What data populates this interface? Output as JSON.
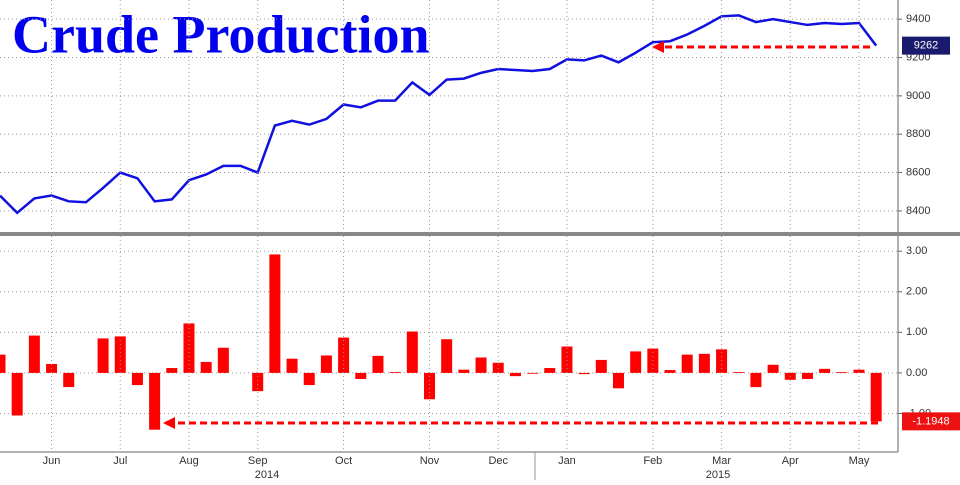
{
  "chart_data": [
    {
      "type": "line",
      "title": "Crude Production",
      "series": [
        {
          "color": "#1010e0",
          "values": [
            8480,
            8390,
            8465,
            8480,
            8450,
            8445,
            8520,
            8600,
            8570,
            8450,
            8460,
            8560,
            8590,
            8635,
            8635,
            8600,
            8845,
            8870,
            8850,
            8880,
            8955,
            8940,
            8975,
            8975,
            9070,
            9005,
            9085,
            9090,
            9120,
            9140,
            9135,
            9130,
            9140,
            9190,
            9185,
            9210,
            9175,
            9225,
            9280,
            9285,
            9320,
            9365,
            9415,
            9420,
            9385,
            9400,
            9385,
            9370,
            9380,
            9375,
            9380,
            9262
          ]
        }
      ],
      "ylim": [
        8290,
        9500
      ],
      "yticks": [
        8400,
        8600,
        8800,
        9000,
        9200,
        9400
      ],
      "grid": true
    },
    {
      "type": "bar",
      "categories": [
        null,
        null,
        null,
        "Jun",
        null,
        null,
        null,
        "Jul",
        null,
        null,
        null,
        "Aug",
        null,
        null,
        null,
        "Sep",
        null,
        null,
        null,
        null,
        "Oct",
        null,
        null,
        null,
        null,
        "Nov",
        null,
        null,
        null,
        "Dec",
        null,
        null,
        null,
        "Jan",
        null,
        null,
        null,
        null,
        "Feb",
        null,
        null,
        null,
        "Mar",
        null,
        null,
        null,
        "Apr",
        null,
        null,
        null,
        "May",
        null
      ],
      "years": [
        "2014",
        "2015"
      ],
      "series": [
        {
          "color": "#ff0000",
          "values": [
            0.45,
            -1.05,
            0.92,
            0.22,
            -0.35,
            0,
            0.85,
            0.9,
            -0.3,
            -1.4,
            0.12,
            1.22,
            0.27,
            0.62,
            0,
            -0.45,
            2.92,
            0.35,
            -0.3,
            0.43,
            0.87,
            -0.15,
            0.42,
            0.02,
            1.02,
            -0.65,
            0.83,
            0.08,
            0.38,
            0.25,
            -0.08,
            -0.02,
            0.12,
            0.65,
            -0.03,
            0.32,
            -0.38,
            0.53,
            0.6,
            0.07,
            0.45,
            0.47,
            0.58,
            0.02,
            -0.35,
            0.2,
            -0.17,
            -0.15,
            0.1,
            0.02,
            0.08,
            -1.1948
          ]
        }
      ],
      "ylim": [
        -1.95,
        3.35
      ],
      "yticks": [
        {
          "value": -1,
          "label": "-1.00"
        },
        {
          "value": 0,
          "label": "0.00"
        },
        {
          "value": 1,
          "label": "1.00"
        },
        {
          "value": 2,
          "label": "2.00"
        },
        {
          "value": 3,
          "label": "3.00"
        }
      ],
      "grid": true
    }
  ]
}
